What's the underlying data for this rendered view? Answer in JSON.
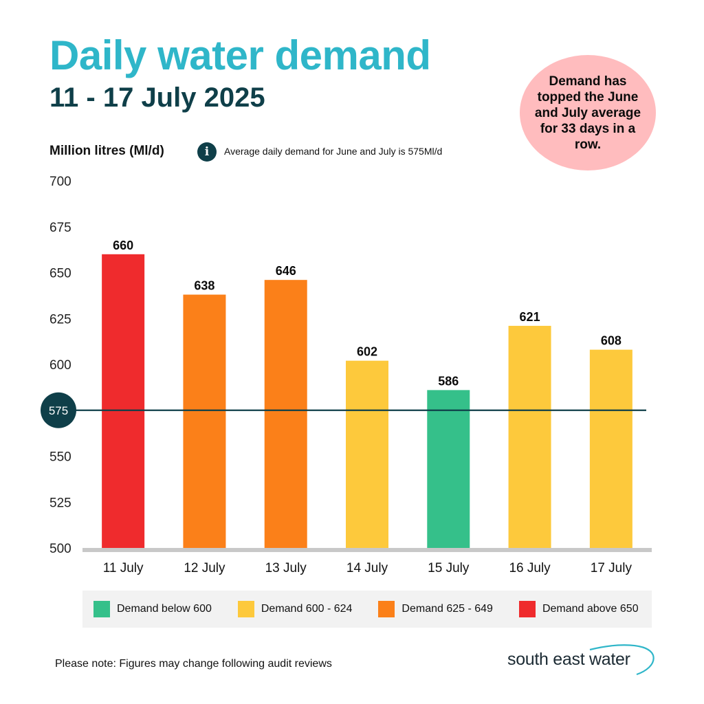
{
  "header": {
    "title": "Daily water demand",
    "subtitle": "11 - 17 July 2025"
  },
  "callout": {
    "text": "Demand has topped the June and July average for 33 days in a row."
  },
  "axis": {
    "ylabel": "Million litres (Ml/d)"
  },
  "info": {
    "icon": "info-icon",
    "symbol": "i",
    "text": "Average daily demand for June and July is 575Ml/d"
  },
  "chart_data": {
    "type": "bar",
    "title": "Daily water demand",
    "subtitle": "11 - 17 July 2025",
    "ylabel": "Million litres (Ml/d)",
    "xlabel": "",
    "ylim": [
      500,
      700
    ],
    "yticks": [
      500,
      525,
      550,
      575,
      600,
      625,
      650,
      675,
      700
    ],
    "categories": [
      "11 July",
      "12 July",
      "13 July",
      "14 July",
      "15 July",
      "16 July",
      "17 July"
    ],
    "values": [
      660,
      638,
      646,
      602,
      586,
      621,
      608
    ],
    "value_labels": [
      "660",
      "638",
      "646",
      "602",
      "586",
      "621",
      "608"
    ],
    "reference_line": {
      "value": 575,
      "label": "575",
      "color": "#0f3f49"
    },
    "bands": [
      {
        "label": "Demand below 600",
        "min": 0,
        "max": 599,
        "color": "#35c08a"
      },
      {
        "label": "Demand 600 - 624",
        "min": 600,
        "max": 624,
        "color": "#fdc93c"
      },
      {
        "label": "Demand 625 - 649",
        "min": 625,
        "max": 649,
        "color": "#fb8019"
      },
      {
        "label": "Demand above 650",
        "min": 650,
        "max": 100000,
        "color": "#ef2b2d"
      }
    ],
    "grid": false,
    "legend": "bottom"
  },
  "footer": {
    "note": "Please note: Figures may change following audit reviews",
    "logo_text": "south east water"
  },
  "colors": {
    "title": "#2fb6c9",
    "subtitle": "#0f3f49",
    "callout_bg": "#ffbcbe",
    "baseline": "#c8c8c8",
    "logo_swoosh": "#2fb6c9"
  }
}
